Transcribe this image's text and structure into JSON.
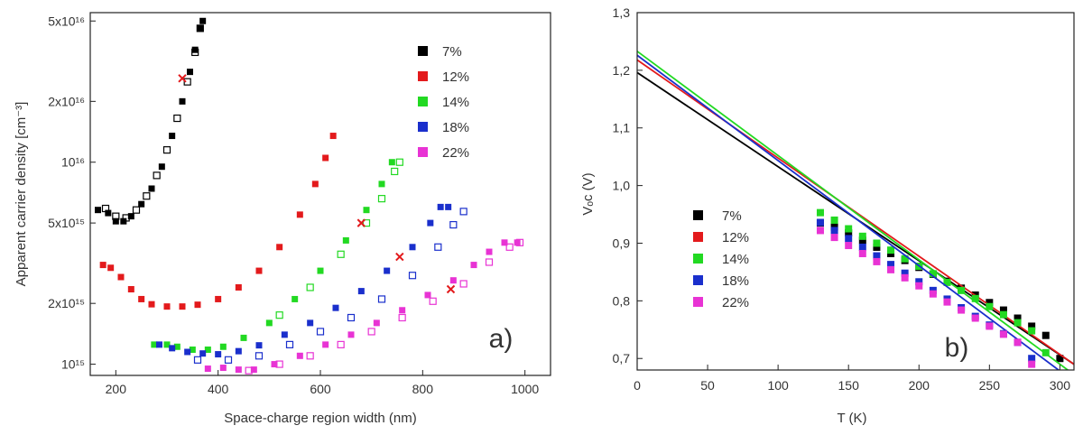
{
  "figure": {
    "panels": [
      "a)",
      "b)"
    ]
  },
  "chart_data": [
    {
      "panel": "a)",
      "type": "scatter",
      "xlabel": "Space-charge region width (nm)",
      "ylabel": "Apparent carrier density  [cm⁻³]",
      "xlim": [
        150,
        1050
      ],
      "ylim": [
        880000000000000.0,
        5.5e+16
      ],
      "yscale": "log",
      "x_ticks": [
        200,
        400,
        600,
        800,
        1000
      ],
      "x_tick_labels": [
        "200",
        "400",
        "600",
        "800",
        "1000"
      ],
      "y_ticks": [
        1000000000000000.0,
        2000000000000000.0,
        5000000000000000.0,
        1e+16,
        2e+16,
        5e+16
      ],
      "y_tick_labels": [
        "10¹⁵",
        "2x10¹⁵",
        "5x10¹⁵",
        "10¹⁶",
        "2x10¹⁶",
        "5x10¹⁶"
      ],
      "legend_location": "top-right",
      "series": [
        {
          "name": "7%",
          "color": "#000000",
          "filled": [
            [
              165,
              5800000000000000.0
            ],
            [
              185,
              5600000000000000.0
            ],
            [
              200,
              5100000000000000.0
            ],
            [
              215,
              5100000000000000.0
            ],
            [
              230,
              5400000000000000.0
            ],
            [
              250,
              6200000000000000.0
            ],
            [
              270,
              7400000000000000.0
            ],
            [
              290,
              9500000000000000.0
            ],
            [
              310,
              1.35e+16
            ],
            [
              330,
              2e+16
            ],
            [
              345,
              2.8e+16
            ],
            [
              355,
              3.6e+16
            ],
            [
              365,
              4.6e+16
            ],
            [
              370,
              5e+16
            ]
          ],
          "open": [
            [
              180,
              5900000000000000.0
            ],
            [
              200,
              5400000000000000.0
            ],
            [
              220,
              5300000000000000.0
            ],
            [
              240,
              5800000000000000.0
            ],
            [
              260,
              6800000000000000.0
            ],
            [
              280,
              8600000000000000.0
            ],
            [
              300,
              1.15e+16
            ],
            [
              320,
              1.65e+16
            ],
            [
              340,
              2.5e+16
            ],
            [
              355,
              3.5e+16
            ],
            [
              365,
              4.6e+16
            ]
          ]
        },
        {
          "name": "12%",
          "color": "#e31a1c",
          "filled": [
            [
              175,
              3100000000000000.0
            ],
            [
              190,
              3000000000000000.0
            ],
            [
              210,
              2700000000000000.0
            ],
            [
              230,
              2350000000000000.0
            ],
            [
              250,
              2100000000000000.0
            ],
            [
              270,
              1980000000000000.0
            ],
            [
              300,
              1930000000000000.0
            ],
            [
              330,
              1930000000000000.0
            ],
            [
              360,
              1970000000000000.0
            ],
            [
              400,
              2100000000000000.0
            ],
            [
              440,
              2400000000000000.0
            ],
            [
              480,
              2900000000000000.0
            ],
            [
              520,
              3800000000000000.0
            ],
            [
              560,
              5500000000000000.0
            ],
            [
              590,
              7800000000000000.0
            ],
            [
              610,
              1.05e+16
            ],
            [
              625,
              1.35e+16
            ]
          ],
          "open": []
        },
        {
          "name": "14%",
          "color": "#22d922",
          "filled": [
            [
              275,
              1250000000000000.0
            ],
            [
              300,
              1250000000000000.0
            ],
            [
              320,
              1220000000000000.0
            ],
            [
              350,
              1180000000000000.0
            ],
            [
              380,
              1180000000000000.0
            ],
            [
              410,
              1220000000000000.0
            ],
            [
              450,
              1350000000000000.0
            ],
            [
              500,
              1600000000000000.0
            ],
            [
              550,
              2100000000000000.0
            ],
            [
              600,
              2900000000000000.0
            ],
            [
              650,
              4100000000000000.0
            ],
            [
              690,
              5800000000000000.0
            ],
            [
              720,
              7800000000000000.0
            ],
            [
              740,
              1e+16
            ]
          ],
          "open": [
            [
              520,
              1750000000000000.0
            ],
            [
              580,
              2400000000000000.0
            ],
            [
              640,
              3500000000000000.0
            ],
            [
              690,
              5000000000000000.0
            ],
            [
              720,
              6600000000000000.0
            ],
            [
              745,
              9000000000000000.0
            ],
            [
              755,
              1e+16
            ]
          ]
        },
        {
          "name": "18%",
          "color": "#1a2fcc",
          "filled": [
            [
              285,
              1250000000000000.0
            ],
            [
              310,
              1200000000000000.0
            ],
            [
              340,
              1150000000000000.0
            ],
            [
              370,
              1130000000000000.0
            ],
            [
              400,
              1120000000000000.0
            ],
            [
              440,
              1160000000000000.0
            ],
            [
              480,
              1240000000000000.0
            ],
            [
              530,
              1400000000000000.0
            ],
            [
              580,
              1600000000000000.0
            ],
            [
              630,
              1900000000000000.0
            ],
            [
              680,
              2300000000000000.0
            ],
            [
              730,
              2900000000000000.0
            ],
            [
              780,
              3800000000000000.0
            ],
            [
              815,
              5000000000000000.0
            ],
            [
              835,
              6000000000000000.0
            ],
            [
              850,
              6000000000000000.0
            ]
          ],
          "open": [
            [
              360,
              1050000000000000.0
            ],
            [
              420,
              1050000000000000.0
            ],
            [
              480,
              1100000000000000.0
            ],
            [
              540,
              1250000000000000.0
            ],
            [
              600,
              1450000000000000.0
            ],
            [
              660,
              1700000000000000.0
            ],
            [
              720,
              2100000000000000.0
            ],
            [
              780,
              2750000000000000.0
            ],
            [
              830,
              3800000000000000.0
            ],
            [
              860,
              4900000000000000.0
            ],
            [
              880,
              5700000000000000.0
            ]
          ]
        },
        {
          "name": "22%",
          "color": "#e833d4",
          "filled": [
            [
              380,
              950000000000000.0
            ],
            [
              410,
              960000000000000.0
            ],
            [
              440,
              940000000000000.0
            ],
            [
              470,
              940000000000000.0
            ],
            [
              510,
              1000000000000000.0
            ],
            [
              560,
              1100000000000000.0
            ],
            [
              610,
              1250000000000000.0
            ],
            [
              660,
              1400000000000000.0
            ],
            [
              710,
              1600000000000000.0
            ],
            [
              760,
              1850000000000000.0
            ],
            [
              810,
              2200000000000000.0
            ],
            [
              860,
              2600000000000000.0
            ],
            [
              900,
              3100000000000000.0
            ],
            [
              930,
              3600000000000000.0
            ],
            [
              960,
              4000000000000000.0
            ],
            [
              985,
              4000000000000000.0
            ]
          ],
          "open": [
            [
              460,
              930000000000000.0
            ],
            [
              520,
              1000000000000000.0
            ],
            [
              580,
              1100000000000000.0
            ],
            [
              640,
              1250000000000000.0
            ],
            [
              700,
              1450000000000000.0
            ],
            [
              760,
              1700000000000000.0
            ],
            [
              820,
              2050000000000000.0
            ],
            [
              880,
              2500000000000000.0
            ],
            [
              930,
              3200000000000000.0
            ],
            [
              970,
              3800000000000000.0
            ],
            [
              990,
              4000000000000000.0
            ]
          ]
        }
      ],
      "markers_red_x": [
        [
          330,
          2.6e+16
        ],
        [
          680,
          5000000000000000.0
        ],
        [
          755,
          3400000000000000.0
        ],
        [
          855,
          2350000000000000.0
        ]
      ]
    },
    {
      "panel": "b)",
      "type": "scatter",
      "xlabel": "T (K)",
      "ylabel": "Vₒᴄ (V)",
      "xlim": [
        0,
        310
      ],
      "ylim": [
        0.68,
        1.3
      ],
      "x_ticks": [
        0,
        50,
        100,
        150,
        200,
        250,
        300
      ],
      "x_tick_labels": [
        "0",
        "50",
        "100",
        "150",
        "200",
        "250",
        "300"
      ],
      "y_ticks": [
        0.7,
        0.8,
        0.9,
        1.0,
        1.1,
        1.2,
        1.3
      ],
      "y_tick_labels": [
        "0,7",
        "0,8",
        "0,9",
        "1,0",
        "1,1",
        "1,2",
        "1,3"
      ],
      "legend_location": "center-left",
      "series": [
        {
          "name": "7%",
          "color": "#000000",
          "fit": [
            [
              0,
              1.196
            ],
            [
              310,
              0.69
            ]
          ],
          "points": [
            [
              130,
              0.935
            ],
            [
              140,
              0.928
            ],
            [
              150,
              0.918
            ],
            [
              160,
              0.905
            ],
            [
              170,
              0.893
            ],
            [
              180,
              0.882
            ],
            [
              190,
              0.87
            ],
            [
              200,
              0.858
            ],
            [
              210,
              0.846
            ],
            [
              220,
              0.834
            ],
            [
              230,
              0.822
            ],
            [
              240,
              0.81
            ],
            [
              250,
              0.797
            ],
            [
              260,
              0.784
            ],
            [
              270,
              0.77
            ],
            [
              280,
              0.756
            ],
            [
              290,
              0.74
            ],
            [
              300,
              0.7
            ]
          ]
        },
        {
          "name": "12%",
          "color": "#e31a1c",
          "fit": [
            [
              0,
              1.218
            ],
            [
              310,
              0.69
            ]
          ],
          "points": []
        },
        {
          "name": "14%",
          "color": "#22d922",
          "fit": [
            [
              0,
              1.233
            ],
            [
              310,
              0.672
            ]
          ],
          "points": [
            [
              130,
              0.953
            ],
            [
              140,
              0.94
            ],
            [
              150,
              0.925
            ],
            [
              160,
              0.912
            ],
            [
              170,
              0.9
            ],
            [
              180,
              0.888
            ],
            [
              190,
              0.873
            ],
            [
              200,
              0.86
            ],
            [
              210,
              0.847
            ],
            [
              220,
              0.832
            ],
            [
              230,
              0.818
            ],
            [
              240,
              0.804
            ],
            [
              250,
              0.79
            ],
            [
              260,
              0.776
            ],
            [
              270,
              0.762
            ],
            [
              280,
              0.748
            ],
            [
              290,
              0.71
            ]
          ]
        },
        {
          "name": "18%",
          "color": "#1a2fcc",
          "fit": [
            [
              0,
              1.226
            ],
            [
              310,
              0.66
            ]
          ],
          "points": [
            [
              130,
              0.936
            ],
            [
              140,
              0.922
            ],
            [
              150,
              0.908
            ],
            [
              160,
              0.893
            ],
            [
              170,
              0.878
            ],
            [
              180,
              0.863
            ],
            [
              190,
              0.848
            ],
            [
              200,
              0.833
            ],
            [
              210,
              0.818
            ],
            [
              220,
              0.803
            ],
            [
              230,
              0.788
            ],
            [
              240,
              0.773
            ],
            [
              250,
              0.758
            ],
            [
              260,
              0.743
            ],
            [
              270,
              0.728
            ],
            [
              280,
              0.7
            ]
          ]
        },
        {
          "name": "22%",
          "color": "#e833d4",
          "fit": [],
          "points": [
            [
              130,
              0.922
            ],
            [
              140,
              0.91
            ],
            [
              150,
              0.896
            ],
            [
              160,
              0.882
            ],
            [
              170,
              0.868
            ],
            [
              180,
              0.854
            ],
            [
              190,
              0.84
            ],
            [
              200,
              0.826
            ],
            [
              210,
              0.812
            ],
            [
              220,
              0.798
            ],
            [
              230,
              0.784
            ],
            [
              240,
              0.77
            ],
            [
              250,
              0.756
            ],
            [
              260,
              0.742
            ],
            [
              270,
              0.728
            ],
            [
              280,
              0.69
            ]
          ]
        }
      ]
    }
  ]
}
